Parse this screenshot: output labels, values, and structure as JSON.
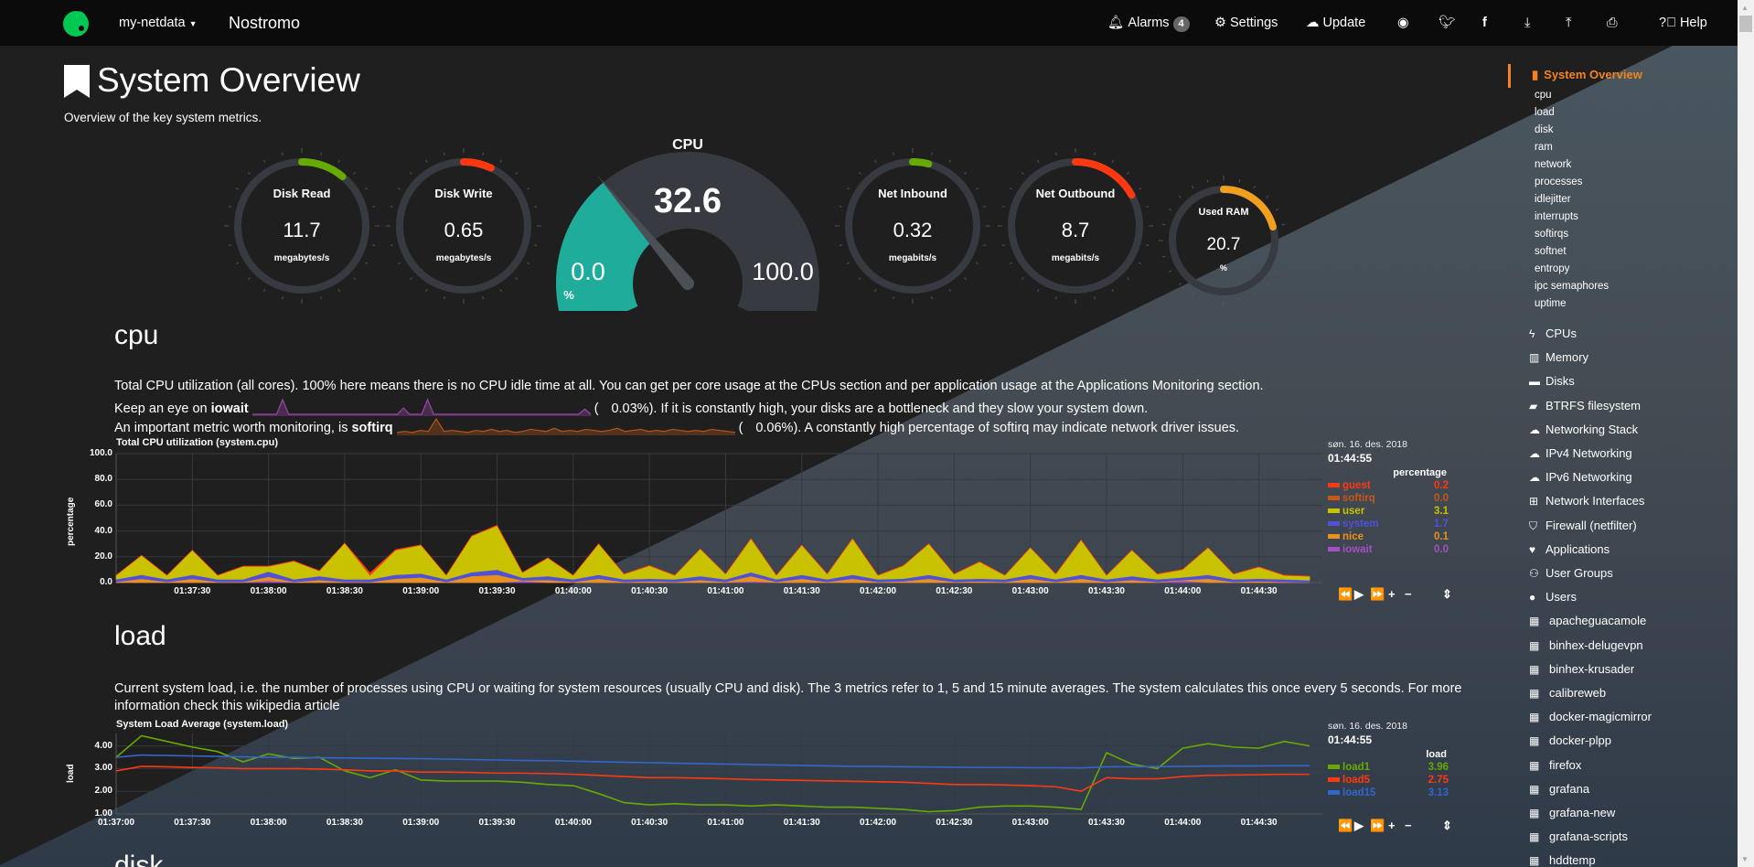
{
  "topbar": {
    "server": "my-netdata",
    "host": "Nostromo",
    "alarms": "Alarms",
    "alarms_count": "4",
    "settings": "Settings",
    "update": "Update",
    "help": "Help"
  },
  "page": {
    "title": "System Overview",
    "subtitle": "Overview of the key system metrics."
  },
  "gauges": [
    {
      "title": "Disk Read",
      "value": "11.7",
      "unit": "megabytes/s",
      "fill_percent": 11,
      "color": "#66aa00"
    },
    {
      "title": "Disk Write",
      "value": "0.65",
      "unit": "megabytes/s",
      "fill_percent": 7,
      "color": "#fe3912"
    },
    {
      "title": "Net Inbound",
      "value": "0.32",
      "unit": "megabits/s",
      "fill_percent": 4,
      "color": "#66aa00"
    },
    {
      "title": "Net Outbound",
      "value": "8.7",
      "unit": "megabits/s",
      "fill_percent": 17,
      "color": "#fe3912"
    },
    {
      "title": "Used RAM",
      "value": "20.7",
      "unit": "%",
      "fill_percent": 20.7,
      "color": "#f19f1f"
    }
  ],
  "cpu_gauge": {
    "title": "CPU",
    "value": "32.6",
    "min": "0.0",
    "max": "100.0",
    "unit": "%",
    "fill_percent": 32.6,
    "color": "#20ac9a"
  },
  "sections": {
    "cpu": {
      "heading": "cpu",
      "line1": "Total CPU utilization (all cores). 100% here means there is no CPU idle time at all. You can get per core usage at the CPUs section and per application usage at the Applications Monitoring section.",
      "line2_pre": "Keep an eye on ",
      "line2_bold": "iowait",
      "line2_open": "(",
      "line2_val": "0.03%",
      "line2_post": "). If it is constantly high, your disks are a bottleneck and they slow your system down.",
      "line3_pre": "An important metric worth monitoring, is ",
      "line3_bold": "softirq",
      "line3_open": "(",
      "line3_val": "0.06%",
      "line3_post": "). A constantly high percentage of softirq may indicate network driver issues."
    },
    "load": {
      "heading": "load",
      "line1": "Current system load, i.e. the number of processes using CPU or waiting for system resources (usually CPU and disk). The 3 metrics refer to 1, 5 and 15 minute averages. The system calculates this once every 5 seconds. For more",
      "line2": "information check this wikipedia article"
    },
    "disk": {
      "heading": "disk"
    }
  },
  "sparklines": {
    "iowait": {
      "color": "#9b46a8",
      "values": [
        0,
        0,
        0,
        0,
        0,
        1.4,
        0,
        0,
        0,
        0,
        0,
        0,
        0,
        0,
        0,
        0,
        0,
        0,
        0,
        0,
        0,
        0,
        0,
        0,
        0,
        0.6,
        0,
        0,
        0,
        1.4,
        0,
        0,
        0,
        0,
        0,
        0,
        0,
        0,
        0,
        0,
        0,
        0,
        0,
        0,
        0,
        0,
        0,
        0,
        0,
        0,
        0,
        0,
        0,
        0,
        0,
        0.5,
        0
      ]
    },
    "softirq": {
      "color": "#b3561a",
      "values": [
        0.1,
        0.2,
        0.1,
        0.3,
        0.2,
        1.4,
        0.2,
        0.3,
        0.2,
        0.1,
        0.3,
        0.2,
        0.4,
        0.2,
        0.3,
        0.1,
        0.2,
        0.4,
        0.3,
        0.2,
        0.5,
        0.2,
        0.3,
        0.2,
        0.4,
        0.3,
        0.2,
        0.3,
        0.5,
        0.2,
        0.3,
        0.4,
        0.2,
        0.3,
        0.2,
        0.4,
        0.3,
        0.2,
        0.3,
        0.2,
        0.4,
        0.3,
        0.2,
        0.1
      ]
    }
  },
  "controls": {
    "rewind": "⏪",
    "play": "▶",
    "forward": "⏩",
    "zoom_in": "+",
    "zoom_out": "−",
    "resize": "⇕"
  },
  "chart_data": [
    {
      "type": "area",
      "stacked": true,
      "title": "Total CPU utilization (system.cpu)",
      "ylabel": "percentage",
      "ylim": [
        0,
        100
      ],
      "yticks": [
        "100.0",
        "80.0",
        "60.0",
        "40.0",
        "20.0",
        "0.0"
      ],
      "xticks": [
        "01:37:30",
        "01:38:00",
        "01:38:30",
        "01:39:00",
        "01:39:30",
        "01:40:00",
        "01:40:30",
        "01:41:00",
        "01:41:30",
        "01:42:00",
        "01:42:30",
        "01:43:00",
        "01:43:30",
        "01:44:00",
        "01:44:30"
      ],
      "xlim": [
        "01:37:00",
        "01:44:55"
      ],
      "grid": true,
      "legend": {
        "date": "søn. 16. des. 2018",
        "time": "01:44:55",
        "unit": "percentage",
        "placement": "right"
      },
      "times": [
        "01:37:00",
        "01:37:10",
        "01:37:20",
        "01:37:30",
        "01:37:40",
        "01:37:50",
        "01:38:00",
        "01:38:10",
        "01:38:20",
        "01:38:30",
        "01:38:40",
        "01:38:50",
        "01:39:00",
        "01:39:10",
        "01:39:20",
        "01:39:30",
        "01:39:40",
        "01:39:50",
        "01:40:00",
        "01:40:10",
        "01:40:20",
        "01:40:30",
        "01:40:40",
        "01:40:50",
        "01:41:00",
        "01:41:10",
        "01:41:20",
        "01:41:30",
        "01:41:40",
        "01:41:50",
        "01:42:00",
        "01:42:10",
        "01:42:20",
        "01:42:30",
        "01:42:40",
        "01:42:50",
        "01:43:00",
        "01:43:10",
        "01:43:20",
        "01:43:30",
        "01:43:40",
        "01:43:50",
        "01:44:00",
        "01:44:10",
        "01:44:20",
        "01:44:30",
        "01:44:40",
        "01:44:50"
      ],
      "series": [
        {
          "name": "iowait",
          "color": "#a84ec7",
          "latest": "0.0",
          "values": [
            0,
            0,
            0,
            0,
            0,
            0,
            1.5,
            0,
            0,
            0,
            0,
            0,
            0,
            0,
            0,
            0,
            1.2,
            0,
            0,
            0,
            0,
            0,
            0,
            0,
            0,
            1,
            0,
            0,
            0,
            0,
            0,
            0,
            0,
            0,
            0,
            0,
            0,
            0,
            0,
            0,
            0,
            0,
            1.5,
            0,
            0,
            0,
            0,
            0
          ]
        },
        {
          "name": "nice",
          "color": "#e8921e",
          "latest": "0.1",
          "values": [
            0.5,
            3,
            0.5,
            3,
            0.5,
            0.5,
            3,
            0.5,
            2,
            0.5,
            0.5,
            3,
            4,
            0.5,
            5,
            6,
            0.5,
            2,
            0.5,
            3,
            0.5,
            1,
            0.5,
            2,
            0.5,
            4,
            0.5,
            3,
            0.5,
            3,
            0.5,
            1,
            3,
            0.5,
            1,
            0.5,
            3,
            0.5,
            3,
            0.5,
            2,
            0.5,
            0.5,
            3,
            0.5,
            1,
            0.5,
            0.1
          ]
        },
        {
          "name": "system",
          "color": "#5050d8",
          "latest": "1.7",
          "values": [
            2,
            3,
            2,
            3,
            2,
            2,
            4,
            2,
            3,
            2,
            2,
            3,
            3,
            2,
            3,
            4,
            2,
            3,
            2,
            3,
            2,
            2,
            2,
            3,
            2,
            3,
            2,
            3,
            2,
            3,
            2,
            2,
            3,
            2,
            2,
            2,
            3,
            2,
            3,
            2,
            3,
            2,
            2,
            3,
            2,
            2,
            2,
            1.7
          ]
        },
        {
          "name": "user",
          "color": "#c8c200",
          "latest": "3.1",
          "values": [
            3,
            15,
            3,
            19,
            3,
            10,
            4,
            14,
            4,
            28,
            3,
            19,
            22,
            3,
            28,
            34,
            4,
            14,
            3,
            24,
            4,
            10,
            3,
            21,
            4,
            26,
            3,
            23,
            4,
            28,
            3,
            10,
            24,
            4,
            13,
            3,
            21,
            4,
            27,
            3,
            20,
            4,
            6,
            21,
            4,
            9,
            3,
            3.1
          ]
        },
        {
          "name": "softirq",
          "color": "#c8561a",
          "latest": "0.0",
          "values": [
            0.1,
            0.1,
            0.1,
            0.1,
            0.1,
            0.1,
            0.1,
            0.1,
            0.1,
            0.1,
            0.1,
            0.1,
            0.1,
            0.1,
            0.1,
            0.1,
            0.1,
            0.1,
            0.1,
            0.1,
            0.1,
            0.1,
            0.1,
            0.1,
            0.1,
            0.1,
            0.1,
            0.1,
            0.1,
            0.1,
            0.1,
            0.1,
            0.1,
            0.1,
            0.1,
            0.1,
            0.1,
            0.1,
            0.1,
            0.1,
            0.1,
            0.1,
            0.1,
            0.1,
            0.1,
            0.1,
            0.1,
            0
          ]
        },
        {
          "name": "guest",
          "color": "#ff3912",
          "latest": "0.2",
          "values": [
            0.2,
            0.2,
            0.2,
            0.2,
            0.2,
            0.2,
            0.2,
            0.2,
            0.2,
            0.2,
            2,
            0.5,
            0.2,
            0.2,
            0.2,
            0.5,
            0.2,
            0.2,
            0.2,
            0.2,
            0.2,
            0.2,
            0.2,
            0.2,
            0.2,
            0.2,
            0.2,
            0.2,
            0.2,
            0.2,
            0.2,
            0.2,
            0.2,
            0.2,
            0.2,
            0.2,
            0.2,
            0.2,
            0.2,
            0.2,
            0.2,
            0.2,
            0.2,
            0.2,
            0.2,
            0.2,
            0.2,
            0.2
          ]
        }
      ]
    },
    {
      "type": "line",
      "title": "System Load Average (system.load)",
      "ylabel": "load",
      "ylim": [
        1,
        4.55
      ],
      "yticks": [
        "4.00",
        "3.00",
        "2.00",
        "1.00"
      ],
      "xticks": [
        "01:37:00",
        "01:37:30",
        "01:38:00",
        "01:38:30",
        "01:39:00",
        "01:39:30",
        "01:40:00",
        "01:40:30",
        "01:41:00",
        "01:41:30",
        "01:42:00",
        "01:42:30",
        "01:43:00",
        "01:43:30",
        "01:44:00",
        "01:44:30"
      ],
      "xlim": [
        "01:37:00",
        "01:44:55"
      ],
      "grid": true,
      "legend": {
        "date": "søn. 16. des. 2018",
        "time": "01:44:55",
        "unit": "load",
        "placement": "right"
      },
      "times": [
        "01:37:00",
        "01:37:10",
        "01:37:20",
        "01:37:30",
        "01:37:40",
        "01:37:50",
        "01:38:00",
        "01:38:10",
        "01:38:20",
        "01:38:30",
        "01:38:40",
        "01:38:50",
        "01:39:00",
        "01:39:10",
        "01:39:20",
        "01:39:30",
        "01:39:40",
        "01:39:50",
        "01:40:00",
        "01:40:10",
        "01:40:20",
        "01:40:30",
        "01:40:40",
        "01:40:50",
        "01:41:00",
        "01:41:10",
        "01:41:20",
        "01:41:30",
        "01:41:40",
        "01:41:50",
        "01:42:00",
        "01:42:10",
        "01:42:20",
        "01:42:30",
        "01:42:40",
        "01:42:50",
        "01:43:00",
        "01:43:10",
        "01:43:20",
        "01:43:30",
        "01:43:40",
        "01:43:50",
        "01:44:00",
        "01:44:10",
        "01:44:20",
        "01:44:30",
        "01:44:40",
        "01:44:50"
      ],
      "series": [
        {
          "name": "load1",
          "color": "#66aa00",
          "latest": "3.96",
          "values": [
            3.5,
            4.45,
            4.2,
            3.95,
            3.75,
            3.3,
            3.65,
            3.45,
            3.5,
            2.9,
            2.6,
            2.95,
            2.5,
            2.45,
            2.45,
            2.45,
            2.4,
            2.3,
            2.25,
            1.9,
            1.5,
            1.4,
            1.45,
            1.4,
            1.4,
            1.35,
            1.4,
            1.35,
            1.3,
            1.3,
            1.25,
            1.2,
            1.1,
            1.15,
            1.3,
            1.35,
            1.35,
            1.3,
            1.2,
            3.7,
            3.2,
            3.0,
            3.9,
            4.1,
            3.95,
            3.9,
            4.2,
            4.0
          ]
        },
        {
          "name": "load5",
          "color": "#fe3912",
          "latest": "2.75",
          "values": [
            2.9,
            3.1,
            3.08,
            3.05,
            3.03,
            3.0,
            3.0,
            3.0,
            2.98,
            2.95,
            2.9,
            2.9,
            2.85,
            2.85,
            2.83,
            2.8,
            2.8,
            2.78,
            2.75,
            2.7,
            2.65,
            2.6,
            2.6,
            2.58,
            2.55,
            2.52,
            2.5,
            2.48,
            2.46,
            2.44,
            2.42,
            2.4,
            2.35,
            2.3,
            2.3,
            2.28,
            2.25,
            2.2,
            2.0,
            2.6,
            2.55,
            2.55,
            2.65,
            2.7,
            2.72,
            2.73,
            2.75,
            2.75
          ]
        },
        {
          "name": "load15",
          "color": "#3366cc",
          "latest": "3.13",
          "values": [
            3.5,
            3.6,
            3.58,
            3.56,
            3.54,
            3.52,
            3.5,
            3.5,
            3.48,
            3.47,
            3.46,
            3.45,
            3.44,
            3.42,
            3.4,
            3.38,
            3.36,
            3.35,
            3.33,
            3.3,
            3.28,
            3.26,
            3.24,
            3.22,
            3.2,
            3.18,
            3.16,
            3.14,
            3.12,
            3.1,
            3.1,
            3.08,
            3.07,
            3.06,
            3.05,
            3.05,
            3.04,
            3.04,
            3.03,
            3.08,
            3.08,
            3.09,
            3.1,
            3.11,
            3.12,
            3.12,
            3.13,
            3.13
          ]
        }
      ]
    }
  ],
  "sidebar": {
    "active": "System Overview",
    "accent": "#f58220",
    "subitems": [
      "cpu",
      "load",
      "disk",
      "ram",
      "network",
      "processes",
      "idlejitter",
      "interrupts",
      "softirqs",
      "softnet",
      "entropy",
      "ipc semaphores",
      "uptime"
    ],
    "items": [
      {
        "label": "CPUs",
        "icon": "bolt-icon",
        "glyph": "ϟ"
      },
      {
        "label": "Memory",
        "icon": "memory-chip-icon",
        "glyph": "▥"
      },
      {
        "label": "Disks",
        "icon": "hdd-icon",
        "glyph": "▬"
      },
      {
        "label": "BTRFS filesystem",
        "icon": "folder-open-icon",
        "glyph": "▰"
      },
      {
        "label": "Networking Stack",
        "icon": "cloud-icon",
        "glyph": "☁"
      },
      {
        "label": "IPv4 Networking",
        "icon": "cloud-icon",
        "glyph": "☁"
      },
      {
        "label": "IPv6 Networking",
        "icon": "cloud-icon",
        "glyph": "☁"
      },
      {
        "label": "Network Interfaces",
        "icon": "sitemap-icon",
        "glyph": "⊞"
      },
      {
        "label": "Firewall (netfilter)",
        "icon": "shield-icon",
        "glyph": "⛉"
      },
      {
        "label": "Applications",
        "icon": "heartbeat-icon",
        "glyph": "♥"
      },
      {
        "label": "User Groups",
        "icon": "users-icon",
        "glyph": "⚇"
      },
      {
        "label": "Users",
        "icon": "user-icon",
        "glyph": "●"
      },
      {
        "label": "apacheguacamole",
        "icon": "th-icon",
        "glyph": "▦"
      },
      {
        "label": "binhex-delugevpn",
        "icon": "th-icon",
        "glyph": "▦"
      },
      {
        "label": "binhex-krusader",
        "icon": "th-icon",
        "glyph": "▦"
      },
      {
        "label": "calibreweb",
        "icon": "th-icon",
        "glyph": "▦"
      },
      {
        "label": "docker-magicmirror",
        "icon": "th-icon",
        "glyph": "▦"
      },
      {
        "label": "docker-plpp",
        "icon": "th-icon",
        "glyph": "▦"
      },
      {
        "label": "firefox",
        "icon": "th-icon",
        "glyph": "▦"
      },
      {
        "label": "grafana",
        "icon": "th-icon",
        "glyph": "▦"
      },
      {
        "label": "grafana-new",
        "icon": "th-icon",
        "glyph": "▦"
      },
      {
        "label": "grafana-scripts",
        "icon": "th-icon",
        "glyph": "▦"
      },
      {
        "label": "hddtemp",
        "icon": "th-icon",
        "glyph": "▦"
      }
    ]
  }
}
